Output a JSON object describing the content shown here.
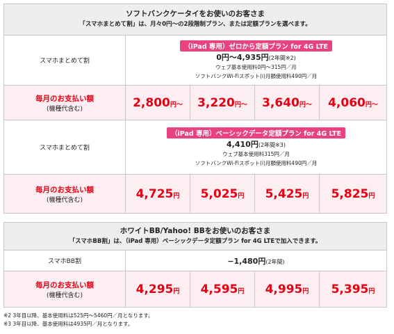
{
  "sections": [
    {
      "header": {
        "title": "ソフトバンクケータイをお使いのお客さま",
        "subtitle": "「スマホまとめて割」は、月々0円〜の2段階制プラン、または定額プランを選べます。"
      },
      "rows": [
        {
          "label": "スマホまとめて割",
          "plan_tag": "（iPad 専用）ゼロから定額プラン for 4G LTE",
          "price": "0円〜4,935円",
          "note": "(2年間※2)",
          "details": [
            "ウェブ基本使用料0円〜315円／月",
            "ソフトバンクWi-Fiスポット(i)月額使用料490円／月"
          ]
        },
        {
          "label": "毎月のお支払い額",
          "sublabel": "(機種代含む)",
          "prices": [
            {
              "amount": "2,800",
              "unit": "円〜"
            },
            {
              "amount": "3,220",
              "unit": "円〜"
            },
            {
              "amount": "3,640",
              "unit": "円〜"
            },
            {
              "amount": "4,060",
              "unit": "円〜"
            }
          ]
        },
        {
          "label": "スマホまとめて割",
          "plan_tag": "（iPad 専用）ベーシックデータ定額プラン for 4G LTE",
          "price": "4,410円",
          "note": "(2年間※3)",
          "details": [
            "ウェブ基本使用料315円／月",
            "ソフトバンクWi-Fiスポット(i)月額使用料490円／月"
          ]
        },
        {
          "label": "毎月のお支払い額",
          "sublabel": "(機種代含む)",
          "prices": [
            {
              "amount": "4,725",
              "unit": "円"
            },
            {
              "amount": "5,025",
              "unit": "円"
            },
            {
              "amount": "5,425",
              "unit": "円"
            },
            {
              "amount": "5,825",
              "unit": "円"
            }
          ]
        }
      ]
    },
    {
      "header": {
        "title": "ホワイトBB/Yahoo! BBをお使いのお客さま",
        "subtitle": "「スマホBB割」は、（iPad 専用）ベーシックデータ定額プラン for 4G LTEで加入できます。"
      },
      "rows": [
        {
          "label": "スマホBB割",
          "price": "−1,480円",
          "note": "(2年間)"
        },
        {
          "label": "毎月のお支払い額",
          "sublabel": "(機種代含む)",
          "prices": [
            {
              "amount": "4,295",
              "unit": "円"
            },
            {
              "amount": "4,595",
              "unit": "円"
            },
            {
              "amount": "4,995",
              "unit": "円"
            },
            {
              "amount": "5,395",
              "unit": "円"
            }
          ]
        }
      ]
    }
  ],
  "footnotes": [
    "※2 3年目以降、基本使用料は525円〜5460円／月となります。",
    "※3 3年目以降、基本使用料は4935円／月となります。"
  ]
}
